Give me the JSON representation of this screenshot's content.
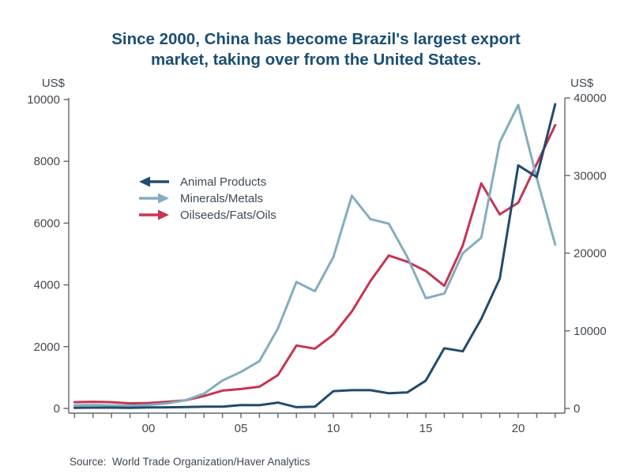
{
  "title": {
    "line1": "Since 2000, China has become Brazil's largest export",
    "line2": "market, taking over from the United States."
  },
  "axis_units": {
    "left": "US$",
    "right": "US$"
  },
  "legend": {
    "items": [
      {
        "label": "Animal Products",
        "arrow": "left",
        "color": "#214B6E"
      },
      {
        "label": "Minerals/Metals",
        "arrow": "right",
        "color": "#82AEBD"
      },
      {
        "label": "Oilseeds/Fats/Oils",
        "arrow": "right",
        "color": "#C63551"
      }
    ]
  },
  "source": {
    "text": "Source:  World Trade Organization/Haver Analytics"
  },
  "colors": {
    "title": "#1B4E74",
    "axis": "#60666D",
    "tick_label": "#41484F",
    "background": "#FFFFFF"
  },
  "chart_data": {
    "type": "line",
    "title": "Since 2000, China has become Brazil's largest export market, taking over from the United States.",
    "grid": false,
    "legend_position": "upper-left-inside",
    "x": [
      1996,
      1997,
      1998,
      1999,
      2000,
      2001,
      2002,
      2003,
      2004,
      2005,
      2006,
      2007,
      2008,
      2009,
      2010,
      2011,
      2012,
      2013,
      2014,
      2015,
      2016,
      2017,
      2018,
      2019,
      2020,
      2021,
      2022
    ],
    "x_tick_years": [
      2000,
      2005,
      2010,
      2015,
      2020
    ],
    "x_tick_labels": [
      "00",
      "05",
      "10",
      "15",
      "20"
    ],
    "x_minor_ticks_every_year": true,
    "left_axis": {
      "unit": "US$",
      "ticks": [
        0,
        2000,
        4000,
        6000,
        8000,
        10000
      ],
      "range": [
        0,
        10000
      ]
    },
    "right_axis": {
      "unit": "US$",
      "ticks": [
        0,
        10000,
        20000,
        30000,
        40000
      ],
      "range": [
        0,
        40000
      ]
    },
    "series": [
      {
        "name": "Animal Products",
        "axis": "left",
        "color": "#214B6E",
        "values": [
          20,
          25,
          25,
          20,
          30,
          35,
          45,
          55,
          60,
          110,
          105,
          190,
          40,
          55,
          560,
          590,
          590,
          490,
          520,
          900,
          1950,
          1850,
          2900,
          4200,
          7870,
          7490,
          9850
        ]
      },
      {
        "name": "Minerals/Metals",
        "axis": "right",
        "color": "#82AEBD",
        "values": [
          400,
          450,
          380,
          330,
          450,
          650,
          1050,
          1900,
          3600,
          4700,
          6100,
          10300,
          16300,
          15100,
          19500,
          27400,
          24400,
          23800,
          19500,
          14200,
          14800,
          20000,
          22000,
          34300,
          39100,
          29700,
          21100
        ]
      },
      {
        "name": "Oilseeds/Fats/Oils",
        "axis": "right",
        "color": "#C63551",
        "values": [
          800,
          850,
          800,
          650,
          700,
          850,
          1050,
          1600,
          2300,
          2500,
          2800,
          4300,
          8100,
          7700,
          9500,
          12500,
          16400,
          19700,
          18900,
          17700,
          15800,
          21000,
          29000,
          25000,
          26500,
          31500,
          36500
        ]
      }
    ]
  }
}
